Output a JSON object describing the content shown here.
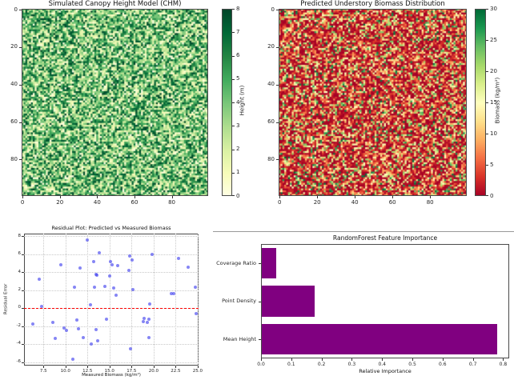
{
  "figure": {
    "background": "#ffffff"
  },
  "chart_data": [
    {
      "type": "heatmap",
      "title": "Simulated Canopy Height Model (CHM)",
      "grid_size": [
        100,
        100
      ],
      "xticks": [
        0,
        20,
        40,
        60,
        80
      ],
      "yticks": [
        0,
        20,
        40,
        60,
        80
      ],
      "value_range": [
        0,
        8
      ],
      "value_distribution": "uniform random noise over full range",
      "colormap": "YlGn",
      "colorbar": {
        "label": "Height (m)",
        "ticks": [
          0,
          1,
          2,
          3,
          4,
          5,
          6,
          7,
          8
        ],
        "min_color": "#ffffe5",
        "max_color": "#004529"
      }
    },
    {
      "type": "heatmap",
      "title": "Predicted Understory Biomass Distribution",
      "grid_size": [
        100,
        100
      ],
      "xticks": [
        0,
        20,
        40,
        60,
        80
      ],
      "yticks": [
        0,
        20,
        40,
        60,
        80
      ],
      "value_range": [
        0,
        30
      ],
      "value_distribution": "low-skewed noise (mostly red/orange low values, sparse green highs)",
      "colormap": "RdYlGn",
      "colorbar": {
        "label": "Biomass (kg/m²)",
        "ticks": [
          0,
          5,
          10,
          15,
          20,
          25,
          30
        ],
        "min_color": "#a50026",
        "max_color": "#006837"
      }
    },
    {
      "type": "scatter",
      "title": "Residual Plot: Predicted vs Measured Biomass",
      "xlabel": "Measured Biomass (kg/m²)",
      "ylabel": "Residual Error",
      "xlim": [
        5.3,
        25.1
      ],
      "ylim": [
        -6.4,
        8.3
      ],
      "xticks": [
        7.5,
        10.0,
        12.5,
        15.0,
        17.5,
        20.0,
        22.5,
        25.0
      ],
      "yticks": [
        -6,
        -4,
        -2,
        0,
        2,
        4,
        6,
        8
      ],
      "grid": true,
      "zero_line": {
        "y": 0,
        "color": "#ff0000",
        "style": "dashed"
      },
      "marker_color": "#4444ee",
      "marker_alpha": 0.65,
      "points": [
        [
          6.3,
          -1.8
        ],
        [
          7.0,
          3.2
        ],
        [
          7.3,
          0.2
        ],
        [
          8.6,
          -1.6
        ],
        [
          8.8,
          -3.4
        ],
        [
          9.5,
          4.85
        ],
        [
          9.8,
          -2.2
        ],
        [
          10.1,
          -2.5
        ],
        [
          10.8,
          -5.65
        ],
        [
          11.0,
          2.3
        ],
        [
          11.3,
          -1.35
        ],
        [
          11.5,
          -2.3
        ],
        [
          11.7,
          4.45
        ],
        [
          12.0,
          -3.3
        ],
        [
          12.5,
          7.6
        ],
        [
          12.8,
          0.35
        ],
        [
          12.9,
          -3.95
        ],
        [
          13.2,
          5.15
        ],
        [
          13.3,
          2.3
        ],
        [
          13.45,
          3.75
        ],
        [
          13.5,
          -2.4
        ],
        [
          13.6,
          3.7
        ],
        [
          13.65,
          -3.6
        ],
        [
          13.8,
          6.2
        ],
        [
          14.5,
          2.45
        ],
        [
          14.7,
          -1.25
        ],
        [
          15.0,
          3.55
        ],
        [
          15.1,
          5.2
        ],
        [
          15.25,
          4.8
        ],
        [
          15.5,
          2.25
        ],
        [
          15.7,
          1.4
        ],
        [
          15.9,
          4.7
        ],
        [
          17.2,
          4.2
        ],
        [
          17.3,
          5.85
        ],
        [
          17.4,
          -4.5
        ],
        [
          17.6,
          5.4
        ],
        [
          17.65,
          2.1
        ],
        [
          18.8,
          -1.5
        ],
        [
          18.95,
          -1.1
        ],
        [
          19.3,
          -1.55
        ],
        [
          19.45,
          -1.25
        ],
        [
          19.5,
          -3.3
        ],
        [
          19.6,
          0.5
        ],
        [
          19.8,
          5.95
        ],
        [
          22.0,
          1.6
        ],
        [
          22.3,
          1.65
        ],
        [
          22.8,
          5.55
        ],
        [
          23.9,
          4.6
        ],
        [
          24.7,
          2.35
        ],
        [
          24.8,
          -0.6
        ]
      ]
    },
    {
      "type": "bar",
      "orientation": "horizontal",
      "title": "RandomForest Feature Importance",
      "xlabel": "Relative Importance",
      "categories": [
        "Coverage Ratio",
        "Point Density",
        "Mean Height"
      ],
      "values": [
        0.047,
        0.175,
        0.778
      ],
      "bar_color": "#800080",
      "xticks": [
        0.0,
        0.1,
        0.2,
        0.3,
        0.4,
        0.5,
        0.6,
        0.7,
        0.8
      ],
      "xlim": [
        0,
        0.82
      ]
    }
  ],
  "colormaps": {
    "YlGn": [
      [
        0,
        "#ffffe5"
      ],
      [
        0.125,
        "#f7fcb9"
      ],
      [
        0.25,
        "#d9f0a3"
      ],
      [
        0.375,
        "#addd8e"
      ],
      [
        0.5,
        "#78c679"
      ],
      [
        0.625,
        "#41ab5d"
      ],
      [
        0.75,
        "#238443"
      ],
      [
        0.875,
        "#006837"
      ],
      [
        1,
        "#004529"
      ]
    ],
    "RdYlGn": [
      [
        0,
        "#a50026"
      ],
      [
        0.1,
        "#d73027"
      ],
      [
        0.2,
        "#f46d43"
      ],
      [
        0.3,
        "#fdae61"
      ],
      [
        0.4,
        "#fee08b"
      ],
      [
        0.5,
        "#ffffbf"
      ],
      [
        0.6,
        "#d9ef8b"
      ],
      [
        0.7,
        "#a6d96a"
      ],
      [
        0.8,
        "#66bd63"
      ],
      [
        0.9,
        "#1a9850"
      ],
      [
        1,
        "#006837"
      ]
    ]
  }
}
